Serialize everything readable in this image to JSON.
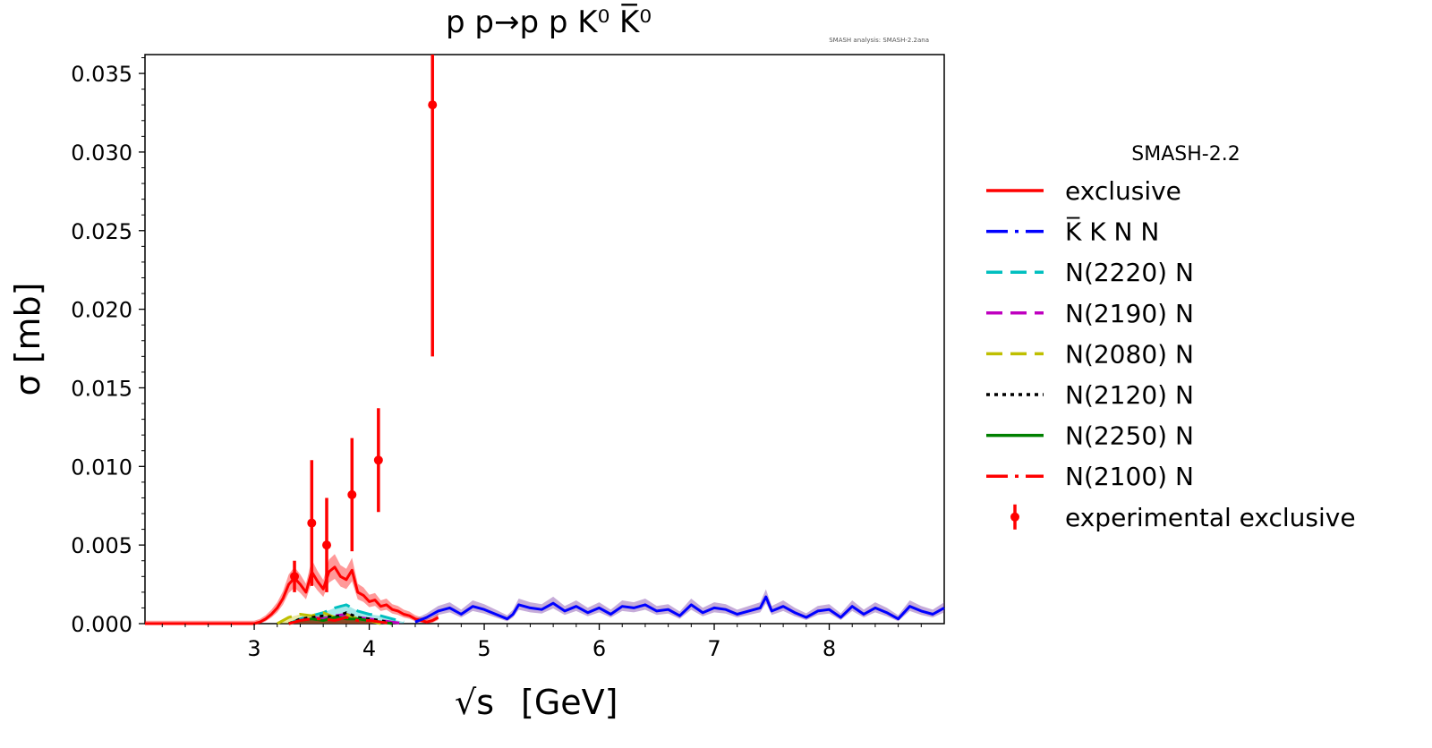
{
  "chart_data": {
    "type": "line",
    "title": "p p→p p K⁰ K̅⁰",
    "watermark": "SMASH analysis: SMASH-2.2ana",
    "xlabel_symbol": "√s",
    "xlabel_unit": "[GeV]",
    "ylabel": "σ [mb]",
    "xlim": [
      2.05,
      9.0
    ],
    "ylim": [
      0.0,
      0.0362
    ],
    "xticks": [
      3,
      4,
      5,
      6,
      7,
      8
    ],
    "xtick_labels": [
      "3",
      "4",
      "5",
      "6",
      "7",
      "8"
    ],
    "yticks": [
      0.0,
      0.005,
      0.01,
      0.015,
      0.02,
      0.025,
      0.03,
      0.035
    ],
    "ytick_labels": [
      "0.000",
      "0.005",
      "0.010",
      "0.015",
      "0.020",
      "0.025",
      "0.030",
      "0.035"
    ],
    "grid": false,
    "legend": {
      "title": "SMASH-2.2",
      "placement": "outside-right",
      "entries": [
        {
          "label": "exclusive",
          "color": "#ff0000",
          "style": "solid"
        },
        {
          "label": "K̅ K N N",
          "color": "#0000ff",
          "style": "dashdot"
        },
        {
          "label": "N(2220) N",
          "color": "#00bfbf",
          "style": "dashed"
        },
        {
          "label": "N(2190) N",
          "color": "#bf00bf",
          "style": "dashed"
        },
        {
          "label": "N(2080) N",
          "color": "#bfbf00",
          "style": "dashed"
        },
        {
          "label": "N(2120) N",
          "color": "#000000",
          "style": "dotted"
        },
        {
          "label": "N(2250) N",
          "color": "#008000",
          "style": "solid"
        },
        {
          "label": "N(2100) N",
          "color": "#ff0000",
          "style": "dashdot"
        },
        {
          "label": "experimental exclusive",
          "color": "#ff0000",
          "style": "errorbar"
        }
      ]
    },
    "experimental": {
      "name": "experimental exclusive",
      "color": "#ff0000",
      "points": [
        {
          "x": 3.35,
          "y": 0.003,
          "err": 0.001
        },
        {
          "x": 3.5,
          "y": 0.0064,
          "err": 0.004
        },
        {
          "x": 3.63,
          "y": 0.005,
          "err": 0.003
        },
        {
          "x": 3.85,
          "y": 0.0082,
          "err": 0.0036
        },
        {
          "x": 4.08,
          "y": 0.0104,
          "err": 0.0033
        },
        {
          "x": 4.55,
          "y": 0.033,
          "err": 0.016
        }
      ]
    },
    "series": [
      {
        "name": "exclusive",
        "color": "#ff0000",
        "band": "#ff0000",
        "x": [
          2.05,
          2.5,
          3.0,
          3.05,
          3.1,
          3.15,
          3.2,
          3.25,
          3.3,
          3.35,
          3.4,
          3.45,
          3.5,
          3.55,
          3.6,
          3.65,
          3.7,
          3.75,
          3.8,
          3.85,
          3.9,
          3.95,
          4.0,
          4.05,
          4.1,
          4.15,
          4.2,
          4.25,
          4.3,
          4.35,
          4.4,
          4.45,
          4.5,
          4.55,
          4.6
        ],
        "y": [
          0.0,
          0.0,
          0.0,
          0.0001,
          0.0003,
          0.0006,
          0.001,
          0.0016,
          0.0025,
          0.0029,
          0.0025,
          0.002,
          0.0033,
          0.0027,
          0.0022,
          0.0033,
          0.0036,
          0.003,
          0.0028,
          0.0034,
          0.002,
          0.0018,
          0.0014,
          0.0015,
          0.0011,
          0.0012,
          0.0009,
          0.0008,
          0.0006,
          0.0005,
          0.0003,
          0.0002,
          0.0001,
          0.0002,
          0.0004
        ]
      },
      {
        "name": "K̅ K N N",
        "color": "#0000ff",
        "band": "#7030a0",
        "x": [
          4.4,
          4.5,
          4.6,
          4.7,
          4.8,
          4.9,
          5.0,
          5.1,
          5.2,
          5.25,
          5.3,
          5.4,
          5.5,
          5.6,
          5.7,
          5.8,
          5.9,
          6.0,
          6.1,
          6.2,
          6.3,
          6.4,
          6.5,
          6.6,
          6.7,
          6.8,
          6.9,
          7.0,
          7.1,
          7.2,
          7.3,
          7.4,
          7.45,
          7.5,
          7.6,
          7.7,
          7.8,
          7.9,
          8.0,
          8.1,
          8.2,
          8.3,
          8.4,
          8.5,
          8.6,
          8.7,
          8.8,
          8.9,
          9.0
        ],
        "y": [
          0.0001,
          0.0004,
          0.0008,
          0.001,
          0.0006,
          0.0011,
          0.0009,
          0.0006,
          0.0003,
          0.0006,
          0.0012,
          0.001,
          0.0009,
          0.0013,
          0.0008,
          0.0011,
          0.0007,
          0.001,
          0.0006,
          0.0011,
          0.001,
          0.0012,
          0.0008,
          0.0009,
          0.0005,
          0.0012,
          0.0007,
          0.001,
          0.0009,
          0.0006,
          0.0008,
          0.001,
          0.0017,
          0.0008,
          0.0011,
          0.0007,
          0.0004,
          0.0008,
          0.0009,
          0.0004,
          0.0011,
          0.0006,
          0.001,
          0.0007,
          0.0003,
          0.0011,
          0.0008,
          0.0006,
          0.001
        ]
      },
      {
        "name": "N(2220) N",
        "color": "#00bfbf",
        "x": [
          3.3,
          3.4,
          3.5,
          3.6,
          3.7,
          3.8,
          3.9,
          4.0,
          4.1,
          4.2,
          4.3
        ],
        "y": [
          0.0,
          0.0003,
          0.0005,
          0.0007,
          0.001,
          0.0012,
          0.0008,
          0.0006,
          0.0005,
          0.0003,
          0.0001
        ]
      },
      {
        "name": "N(2190) N",
        "color": "#bf00bf",
        "x": [
          3.3,
          3.4,
          3.5,
          3.6,
          3.7,
          3.8,
          3.9,
          4.0,
          4.1,
          4.2,
          4.3
        ],
        "y": [
          0.0,
          0.0002,
          0.0004,
          0.0003,
          0.0005,
          0.0006,
          0.0004,
          0.0003,
          0.0002,
          0.0001,
          0.0
        ]
      },
      {
        "name": "N(2080) N",
        "color": "#bfbf00",
        "x": [
          3.2,
          3.3,
          3.4,
          3.5,
          3.6,
          3.7,
          3.8,
          3.9,
          4.0,
          4.1
        ],
        "y": [
          0.0,
          0.0004,
          0.0006,
          0.0005,
          0.0007,
          0.0004,
          0.0006,
          0.0003,
          0.0002,
          0.0
        ]
      },
      {
        "name": "N(2120) N",
        "color": "#000000",
        "x": [
          3.3,
          3.4,
          3.5,
          3.6,
          3.7,
          3.8,
          3.9,
          4.0,
          4.1,
          4.2
        ],
        "y": [
          0.0,
          0.0003,
          0.0004,
          0.0005,
          0.0004,
          0.0007,
          0.0004,
          0.0003,
          0.0002,
          0.0
        ]
      },
      {
        "name": "N(2250) N",
        "color": "#008000",
        "x": [
          3.3,
          3.4,
          3.5,
          3.6,
          3.7,
          3.8,
          3.9,
          4.0,
          4.1,
          4.2
        ],
        "y": [
          0.0,
          0.0002,
          0.0003,
          0.0002,
          0.0004,
          0.0003,
          0.0003,
          0.0002,
          0.0001,
          0.0
        ]
      },
      {
        "name": "N(2100) N",
        "color": "#ff0000",
        "x": [
          3.3,
          3.4,
          3.5,
          3.6,
          3.7,
          3.8,
          3.9,
          4.0,
          4.1,
          4.2
        ],
        "y": [
          0.0,
          0.0002,
          0.0003,
          0.0003,
          0.0002,
          0.0004,
          0.0002,
          0.0002,
          0.0001,
          0.0
        ]
      }
    ]
  }
}
